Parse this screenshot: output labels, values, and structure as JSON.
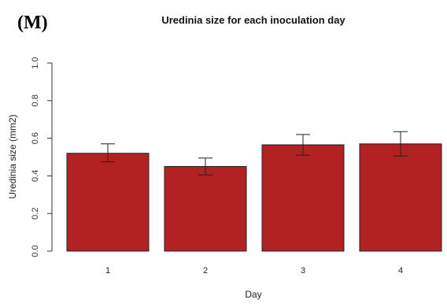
{
  "panel_label": "(M)",
  "chart_data": {
    "type": "bar",
    "title": "Uredinia size for each inoculation day",
    "xlabel": "Day",
    "ylabel": "Uredinia size (mm2)",
    "categories": [
      "1",
      "2",
      "3",
      "4"
    ],
    "values": [
      0.52,
      0.45,
      0.565,
      0.57
    ],
    "error_low": [
      0.475,
      0.405,
      0.51,
      0.505
    ],
    "error_high": [
      0.57,
      0.495,
      0.62,
      0.635
    ],
    "ylim": [
      0,
      1.0
    ],
    "yticks": [
      0.0,
      0.2,
      0.4,
      0.6,
      0.8,
      1.0
    ],
    "ytick_labels": [
      "0.0",
      "0.2",
      "0.4",
      "0.6",
      "0.8",
      "1.0"
    ],
    "bar_color": "#b22222",
    "bar_edge_color": "#222222",
    "grid": false,
    "legend": "none"
  }
}
